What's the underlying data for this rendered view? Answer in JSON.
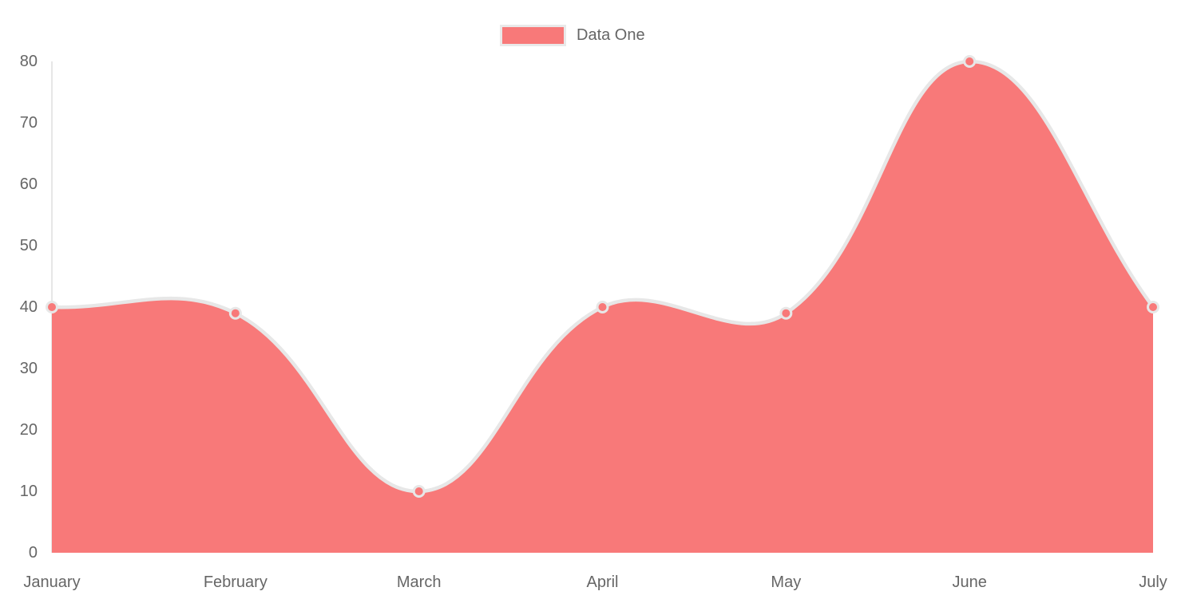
{
  "chart_data": {
    "type": "area",
    "title": "",
    "categories": [
      "January",
      "February",
      "March",
      "April",
      "May",
      "June",
      "July"
    ],
    "series": [
      {
        "name": "Data One",
        "values": [
          40,
          39,
          10,
          40,
          39,
          80,
          40
        ]
      }
    ],
    "xlabel": "",
    "ylabel": "",
    "ylim": [
      0,
      80
    ],
    "ytick_step": 10,
    "ytick_labels": [
      "0",
      "10",
      "20",
      "30",
      "40",
      "50",
      "60",
      "70",
      "80"
    ],
    "grid": false,
    "legend_position": "top",
    "line_tension": 0.4,
    "colors": {
      "area_fill": "#f87979",
      "line_stroke": "#e7e7e7",
      "point_fill": "#f87979",
      "point_border": "#e7e7e7",
      "axis_line": "#e6e6e6",
      "tick_text": "#666666",
      "legend_text": "#666666",
      "legend_swatch_border": "#e9e9e9"
    }
  }
}
